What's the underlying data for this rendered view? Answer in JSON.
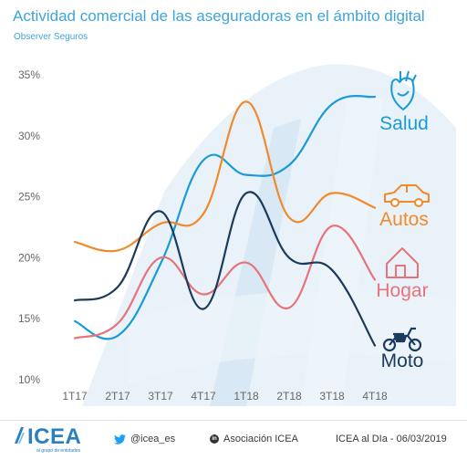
{
  "header": {
    "title": "Actividad comercial de las aseguradoras en el ámbito digital",
    "subtitle": "Observer Seguros"
  },
  "chart_data": {
    "type": "line",
    "categories": [
      "1T17",
      "2T17",
      "3T17",
      "4T17",
      "1T18",
      "2T18",
      "3T18",
      "4T18"
    ],
    "y_ticks": [
      "35%",
      "30%",
      "25%",
      "20%",
      "15%",
      "10%"
    ],
    "ylim": [
      10,
      35
    ],
    "grid": false,
    "legend": "right, inline labels with icons",
    "series": [
      {
        "name": "Salud",
        "color": "#1a9bd7",
        "icon": "heart-icon",
        "values": [
          14.8,
          13.6,
          19.5,
          28.0,
          26.8,
          27.6,
          32.6,
          33.2
        ]
      },
      {
        "name": "Autos",
        "color": "#f08a2c",
        "icon": "car-icon",
        "values": [
          21.3,
          20.6,
          22.8,
          23.6,
          32.8,
          23.3,
          25.3,
          24.1
        ]
      },
      {
        "name": "Hogar",
        "color": "#e8737a",
        "icon": "house-icon",
        "values": [
          13.4,
          14.6,
          20.0,
          17.0,
          19.6,
          15.9,
          22.6,
          18.2
        ]
      },
      {
        "name": "Moto",
        "color": "#1b3a5c",
        "icon": "motorcycle-icon",
        "values": [
          16.5,
          17.6,
          23.8,
          15.8,
          25.3,
          20.0,
          19.0,
          12.8
        ]
      }
    ]
  },
  "footer": {
    "logo_text": "ICEA",
    "logo_tagline": "al grupo de entidades",
    "twitter": "@icea_es",
    "linkedin": "Asociación ICEA",
    "credit": "ICEA al DIa - 06/03/2019"
  },
  "colors": {
    "title": "#3fa5d8",
    "axis_text": "#666666",
    "background_shape": "#e2eef7"
  }
}
